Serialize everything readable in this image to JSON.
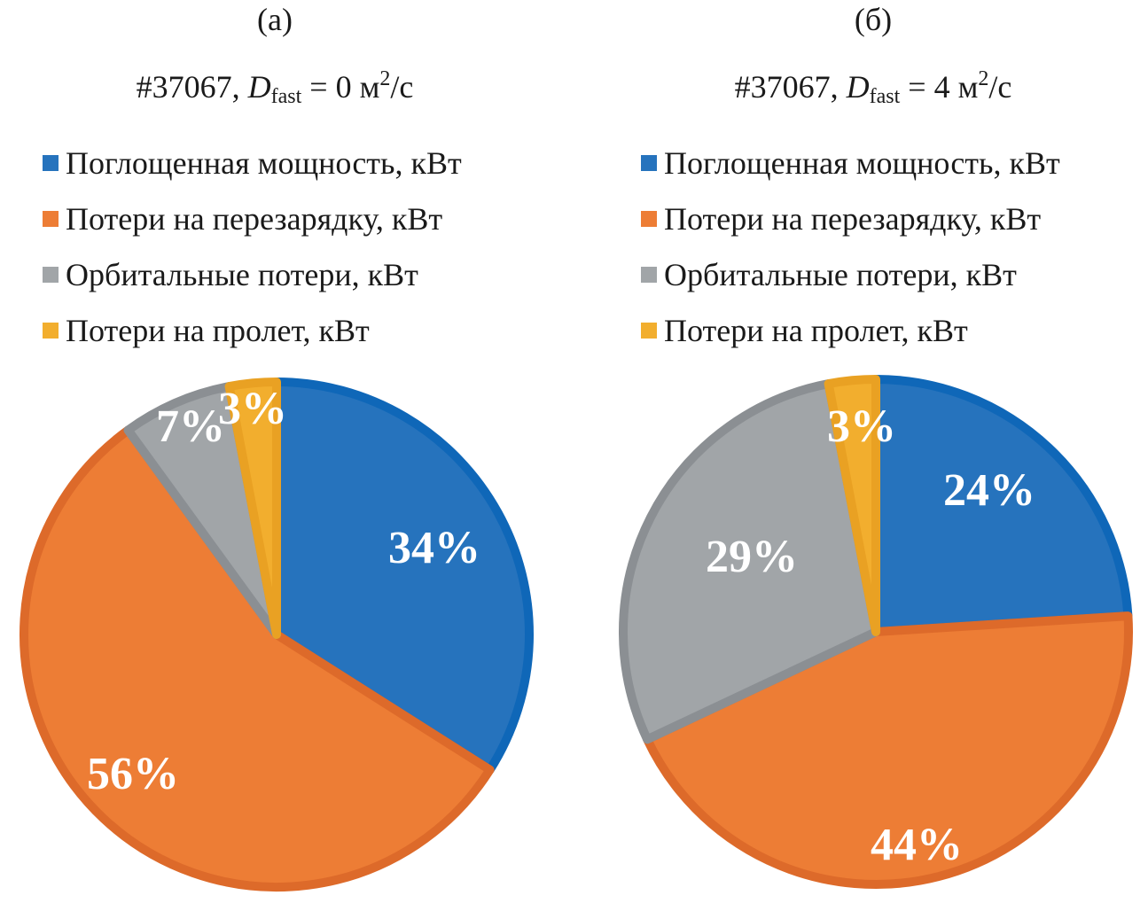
{
  "chart_data": [
    {
      "type": "pie",
      "panel_label": "(а)",
      "title_prefix": "#37067, ",
      "title_var": "D",
      "title_sub": "fast",
      "title_eq": " = 0 м",
      "title_sup": "2",
      "title_unit": "/с",
      "legend_placement": "top",
      "categories": [
        "Поглощенная мощность, кВт",
        "Потери на перезарядку, кВт",
        "Орбитальные потери, кВт",
        "Потери на пролет, кВт"
      ],
      "values": [
        34,
        56,
        7,
        3
      ],
      "labels": [
        "34%",
        "56%",
        "7%",
        "3%"
      ]
    },
    {
      "type": "pie",
      "panel_label": "(б)",
      "title_prefix": "#37067, ",
      "title_var": "D",
      "title_sub": "fast",
      "title_eq": " = 4 м",
      "title_sup": "2",
      "title_unit": "/с",
      "legend_placement": "top",
      "categories": [
        "Поглощенная мощность, кВт",
        "Потери на перезарядку, кВт",
        "Орбитальные потери, кВт",
        "Потери на пролет, кВт"
      ],
      "values": [
        24,
        44,
        29,
        3
      ],
      "labels": [
        "24%",
        "44%",
        "29%",
        "3%"
      ]
    }
  ],
  "colors": {
    "fills": [
      "#2673bd",
      "#ed7d35",
      "#a1a5a8",
      "#f2ae2e"
    ],
    "strokes": [
      "#0f67b8",
      "#dd6a2a",
      "#8b8f93",
      "#e9a123"
    ],
    "label": "#ffffff"
  }
}
